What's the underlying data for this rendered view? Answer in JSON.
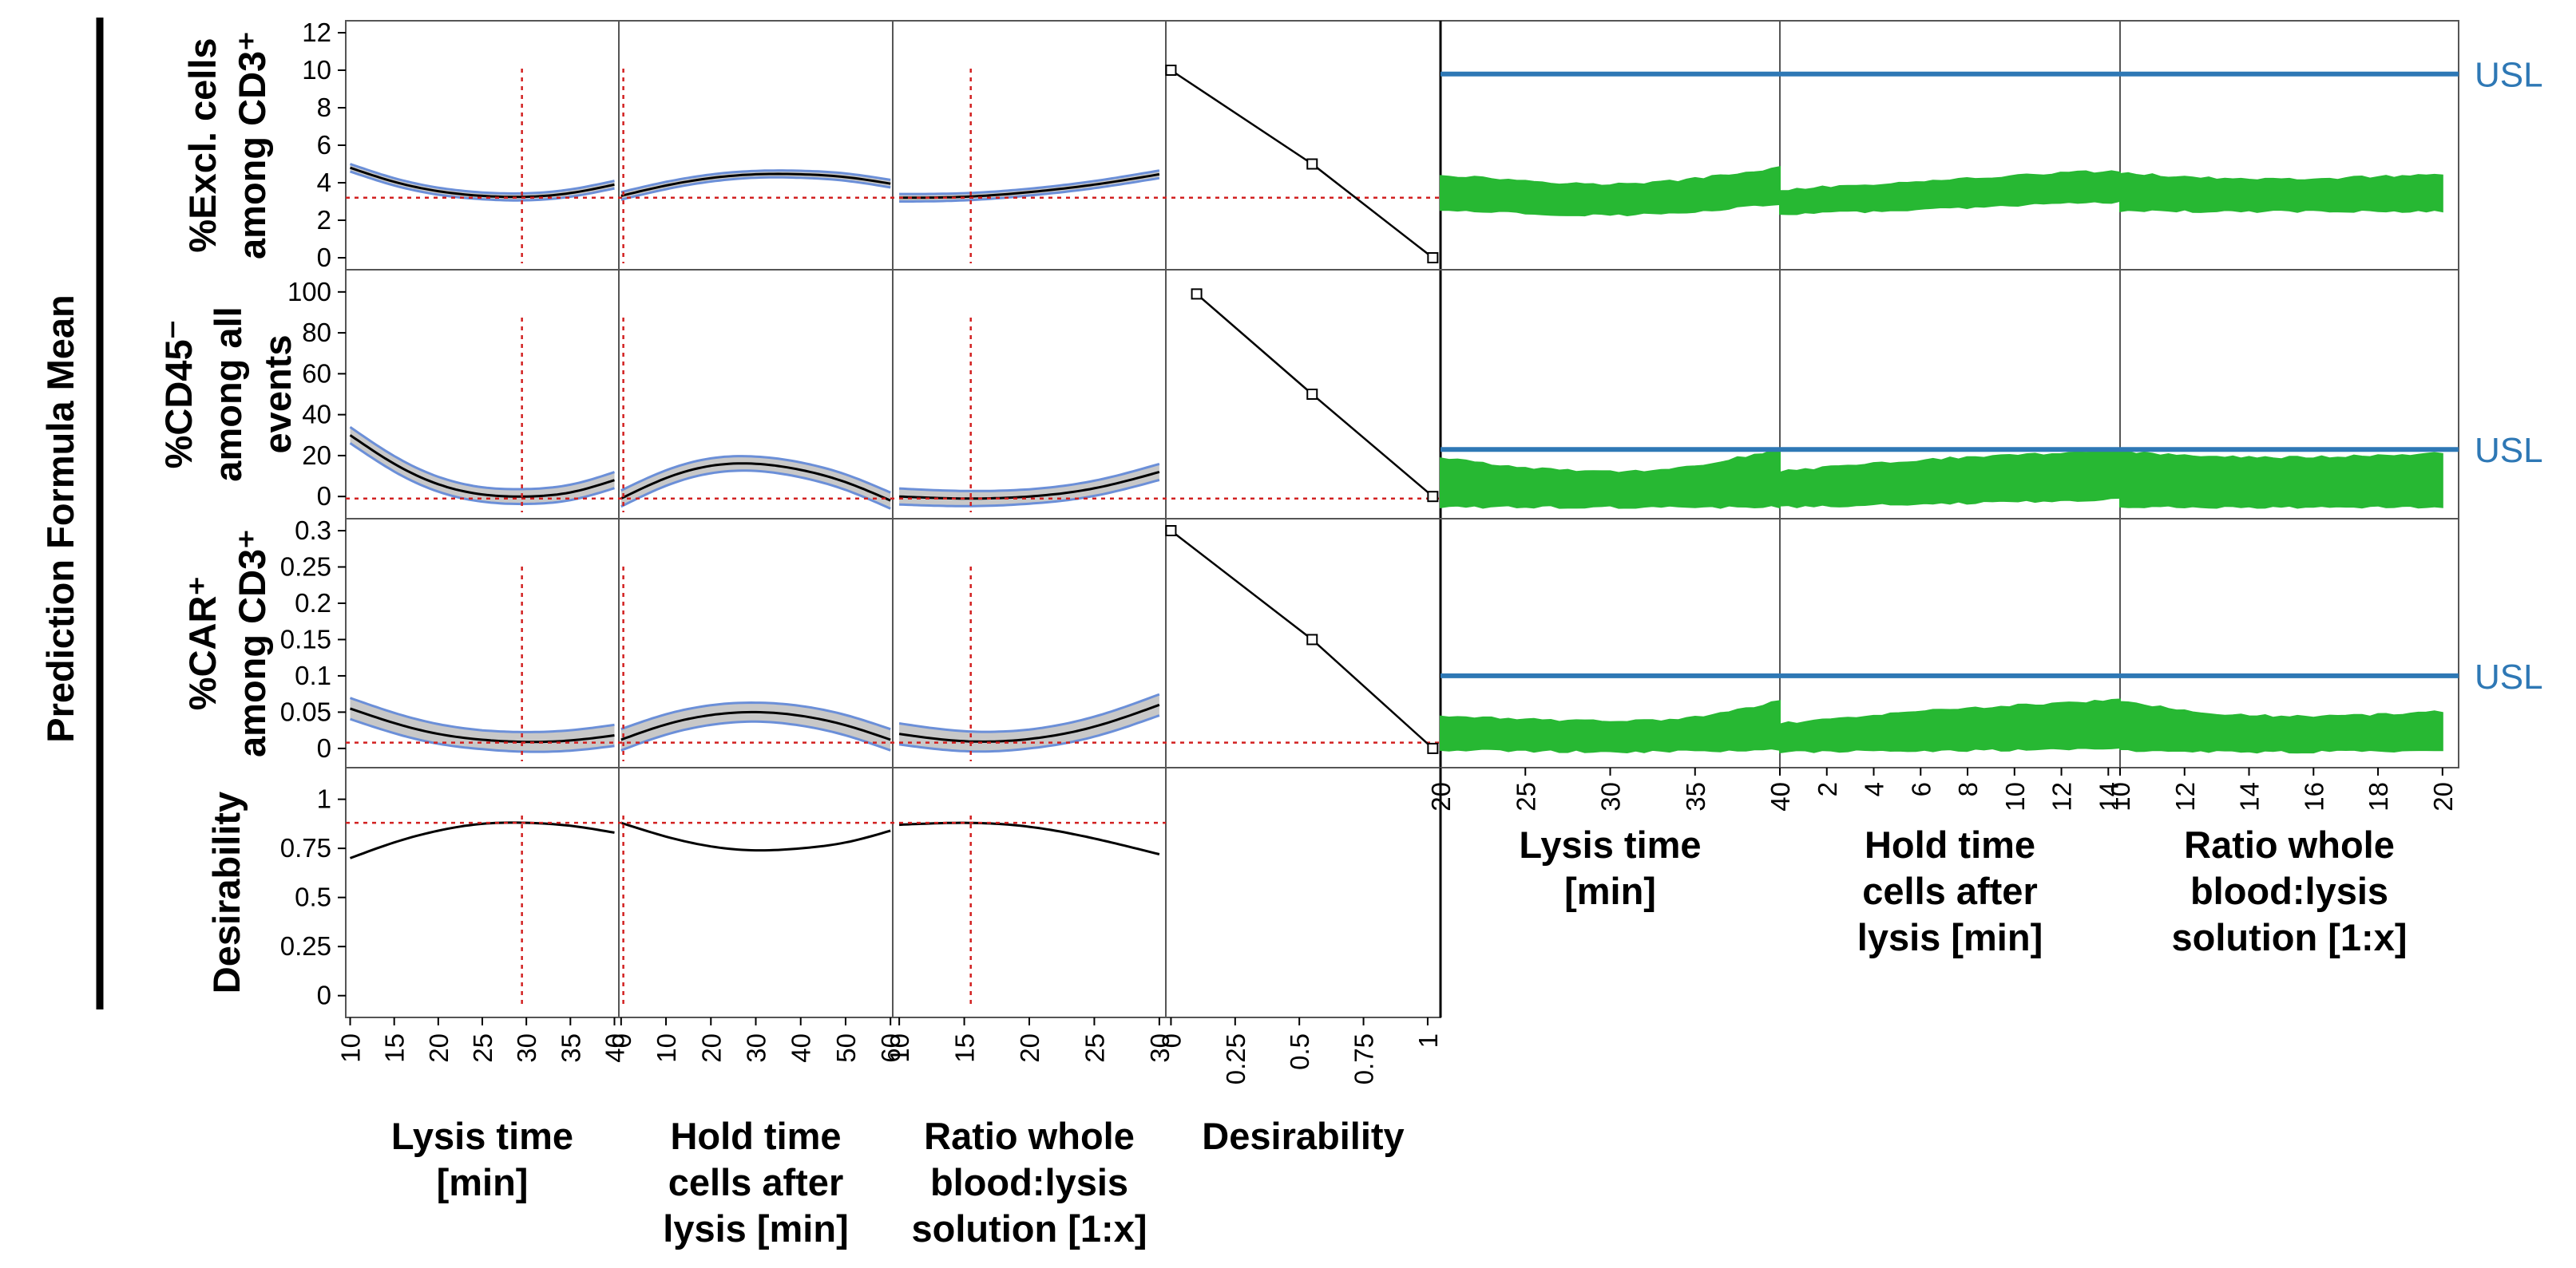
{
  "chart_data": {
    "type": "line",
    "title": "",
    "side_label": "Prediction Formula Mean",
    "responses": [
      {
        "label": [
          "%Excl. cells",
          "among CD3⁺"
        ],
        "ylim": [
          0,
          12
        ],
        "yticks": [
          0,
          2,
          4,
          6,
          8,
          10,
          12
        ],
        "current": 3.2,
        "desirability_x": [
          0.0,
          0.55,
          1.02
        ],
        "desirability_y": [
          10.0,
          5.0,
          0.0
        ],
        "usl": 9.8
      },
      {
        "label": [
          "%CD45⁻",
          "among all",
          "events"
        ],
        "ylim": [
          -5,
          105
        ],
        "yticks": [
          0,
          20,
          40,
          60,
          80,
          100
        ],
        "current": -1.0,
        "desirability_x": [
          0.1,
          0.55,
          1.02
        ],
        "desirability_y": [
          99.0,
          50.0,
          0.0
        ],
        "usl": 23
      },
      {
        "label": [
          "%CAR⁺",
          "among CD3⁺"
        ],
        "ylim": [
          -0.01,
          0.3
        ],
        "yticks": [
          0,
          0.05,
          0.1,
          0.15,
          0.2,
          0.25,
          0.3
        ],
        "ytick_labels": [
          "0",
          "0.05",
          "0.1",
          "0.15",
          "0.2",
          "0.25",
          "0.3"
        ],
        "current": 0.008,
        "desirability_x": [
          0.0,
          0.55,
          1.02
        ],
        "desirability_y": [
          0.3,
          0.15,
          0.0
        ],
        "usl": 0.1
      },
      {
        "label": [
          "Desirability"
        ],
        "ylim": [
          -0.05,
          1.1
        ],
        "yticks": [
          0,
          0.25,
          0.5,
          0.75,
          1
        ],
        "ytick_labels": [
          "0",
          "0.25",
          "0.5",
          "0.75",
          "1"
        ],
        "current": 0.88
      }
    ],
    "factors": [
      {
        "label": [
          "Lysis time",
          "[min]"
        ],
        "xlim": [
          9.5,
          40.5
        ],
        "xticks": [
          10,
          15,
          20,
          25,
          30,
          35,
          40
        ],
        "current": 29.5
      },
      {
        "label": [
          "Hold time",
          "cells after",
          "lysis [min]"
        ],
        "xlim": [
          -0.5,
          60.5
        ],
        "xticks": [
          0,
          10,
          20,
          30,
          40,
          50,
          60
        ],
        "current": 0.5
      },
      {
        "label": [
          "Ratio whole",
          "blood:lysis",
          "solution [1:x]"
        ],
        "xlim": [
          9.5,
          30.5
        ],
        "xticks": [
          10,
          15,
          20,
          25,
          30
        ],
        "current": 15.5
      },
      {
        "label": [
          "Desirability"
        ],
        "xlim": [
          -0.02,
          1.05
        ],
        "xticks": [
          0,
          0.25,
          0.5,
          0.75,
          1
        ],
        "xtick_labels": [
          "0",
          "0.25",
          "0.5",
          "0.75",
          "1"
        ]
      }
    ],
    "profiles": [
      [
        {
          "x": [
            10,
            15,
            20,
            25,
            30,
            35,
            40
          ],
          "y": [
            4.8,
            4.05,
            3.55,
            3.3,
            3.25,
            3.45,
            3.9
          ]
        },
        {
          "x": [
            0,
            10,
            20,
            30,
            40,
            50,
            60
          ],
          "y": [
            3.3,
            3.85,
            4.25,
            4.45,
            4.45,
            4.3,
            3.95
          ]
        },
        {
          "x": [
            10,
            15,
            20,
            25,
            30
          ],
          "y": [
            3.2,
            3.25,
            3.5,
            3.9,
            4.45
          ]
        }
      ],
      [
        {
          "x": [
            10,
            15,
            20,
            25,
            30,
            35,
            40
          ],
          "y": [
            30,
            16,
            6,
            1,
            0,
            2,
            8
          ]
        },
        {
          "x": [
            0,
            10,
            20,
            30,
            40,
            50,
            60
          ],
          "y": [
            -1,
            9,
            15,
            16,
            13,
            7,
            -2
          ]
        },
        {
          "x": [
            10,
            15,
            20,
            25,
            30
          ],
          "y": [
            0,
            -1,
            0,
            4,
            12
          ]
        }
      ],
      [
        {
          "x": [
            10,
            15,
            20,
            25,
            30,
            35,
            40
          ],
          "y": [
            0.055,
            0.035,
            0.02,
            0.012,
            0.009,
            0.011,
            0.018
          ]
        },
        {
          "x": [
            0,
            10,
            20,
            30,
            40,
            50,
            60
          ],
          "y": [
            0.012,
            0.033,
            0.046,
            0.05,
            0.045,
            0.032,
            0.012
          ]
        },
        {
          "x": [
            10,
            15,
            20,
            25,
            30
          ],
          "y": [
            0.02,
            0.01,
            0.013,
            0.03,
            0.06
          ]
        }
      ],
      [
        {
          "x": [
            10,
            15,
            20,
            25,
            30,
            35,
            40
          ],
          "y": [
            0.7,
            0.78,
            0.84,
            0.875,
            0.88,
            0.865,
            0.83
          ]
        },
        {
          "x": [
            0,
            10,
            20,
            30,
            40,
            50,
            60
          ],
          "y": [
            0.88,
            0.81,
            0.76,
            0.74,
            0.75,
            0.78,
            0.84
          ]
        },
        {
          "x": [
            10,
            15,
            20,
            25,
            30
          ],
          "y": [
            0.87,
            0.88,
            0.86,
            0.8,
            0.72
          ]
        }
      ]
    ],
    "band_half_width": [
      0.18,
      3.5,
      0.013
    ],
    "simulation": {
      "label": "USL",
      "factors": [
        {
          "label": [
            "Lysis time",
            "[min]"
          ],
          "xlim": [
            20,
            40
          ],
          "xticks": [
            20,
            25,
            30,
            35,
            40
          ]
        },
        {
          "label": [
            "Hold time",
            "cells after",
            "lysis [min]"
          ],
          "xlim": [
            0,
            14.5
          ],
          "xticks": [
            0,
            2,
            4,
            6,
            8,
            10,
            12,
            14
          ]
        },
        {
          "label": [
            "Ratio whole",
            "blood:lysis",
            "solution [1:x]"
          ],
          "xlim": [
            10,
            20.5
          ],
          "xticks": [
            10,
            12,
            14,
            16,
            18,
            20
          ]
        }
      ],
      "clouds": [
        [
          {
            "x": [
              20,
              25,
              30,
              35,
              40
            ],
            "lo": [
              2.6,
              2.4,
              2.3,
              2.5,
              2.9
            ],
            "hi": [
              4.4,
              4.1,
              3.9,
              4.2,
              4.8
            ]
          },
          {
            "x": [
              0,
              4,
              8,
              12,
              14.5
            ],
            "lo": [
              2.3,
              2.5,
              2.7,
              2.9,
              3.0
            ],
            "hi": [
              3.6,
              3.9,
              4.2,
              4.5,
              4.6
            ]
          },
          {
            "x": [
              10,
              12,
              14,
              16,
              18,
              20
            ],
            "lo": [
              2.5,
              2.5,
              2.5,
              2.5,
              2.5,
              2.5
            ],
            "hi": [
              4.5,
              4.3,
              4.2,
              4.2,
              4.3,
              4.4
            ]
          }
        ],
        [
          {
            "x": [
              20,
              25,
              30,
              35,
              40
            ],
            "lo": [
              -5,
              -5,
              -5,
              -5,
              -5
            ],
            "hi": [
              19,
              14,
              12,
              15,
              23
            ]
          },
          {
            "x": [
              0,
              4,
              8,
              12,
              14.5
            ],
            "lo": [
              -5,
              -4,
              -3,
              -2,
              -1
            ],
            "hi": [
              12,
              16,
              19,
              21,
              22
            ]
          },
          {
            "x": [
              10,
              12,
              14,
              16,
              18,
              20
            ],
            "lo": [
              -5,
              -5,
              -5,
              -5,
              -5,
              -5
            ],
            "hi": [
              22,
              20,
              19,
              19,
              20,
              21
            ]
          }
        ],
        [
          {
            "x": [
              20,
              25,
              30,
              35,
              40
            ],
            "lo": [
              -0.002,
              -0.003,
              -0.004,
              -0.003,
              -0.001
            ],
            "hi": [
              0.045,
              0.04,
              0.037,
              0.043,
              0.065
            ]
          },
          {
            "x": [
              0,
              4,
              8,
              12,
              14.5
            ],
            "lo": [
              -0.004,
              -0.003,
              -0.002,
              -0.001,
              0.0
            ],
            "hi": [
              0.034,
              0.045,
              0.055,
              0.062,
              0.066
            ]
          },
          {
            "x": [
              10,
              12,
              14,
              16,
              18,
              20
            ],
            "lo": [
              -0.002,
              -0.003,
              -0.004,
              -0.004,
              -0.003,
              -0.002
            ],
            "hi": [
              0.065,
              0.052,
              0.045,
              0.044,
              0.046,
              0.05
            ]
          }
        ]
      ]
    },
    "colors": {
      "profile": "#000000",
      "band_fill": "#c8c8c8",
      "band_edge": "#6b8fd8",
      "crosshair": "#d22020",
      "usl": "#2e78b5",
      "cloud": "#27b833",
      "grid_line": "#555555"
    }
  }
}
